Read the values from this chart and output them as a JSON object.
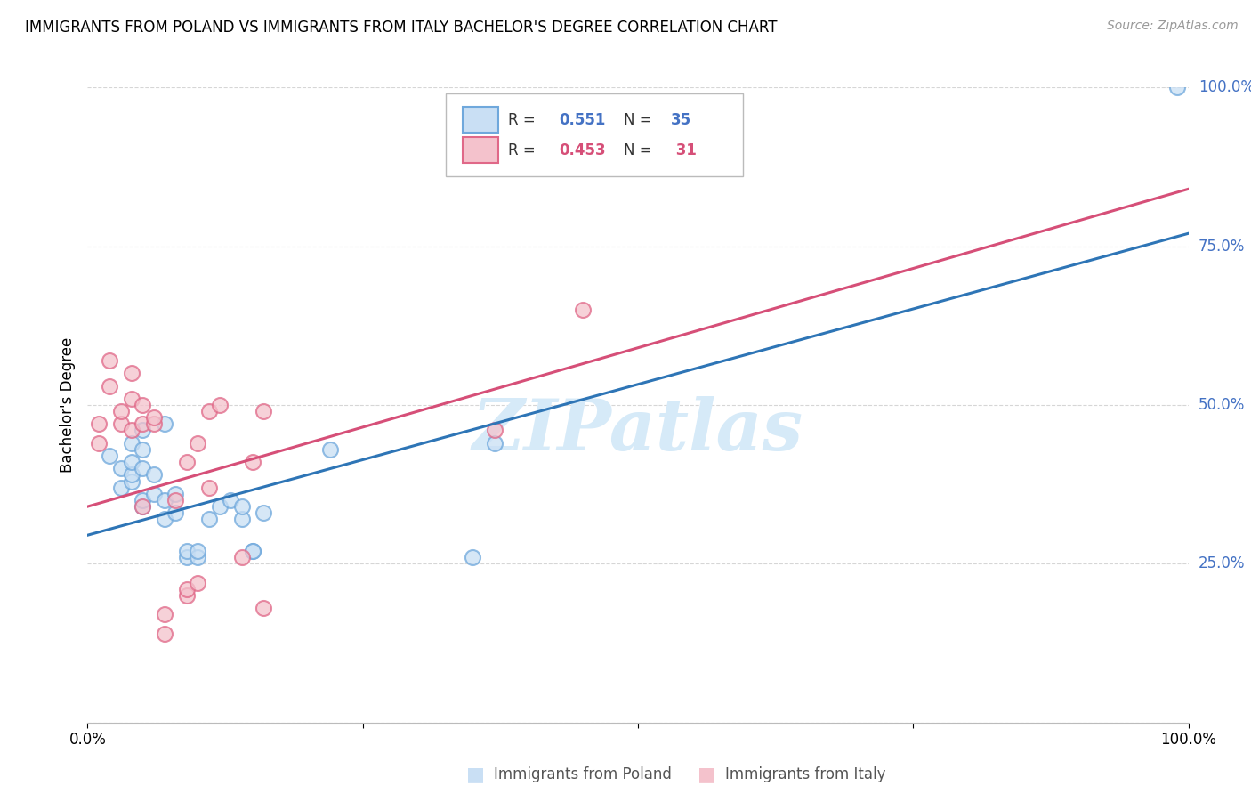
{
  "title": "IMMIGRANTS FROM POLAND VS IMMIGRANTS FROM ITALY BACHELOR'S DEGREE CORRELATION CHART",
  "source": "Source: ZipAtlas.com",
  "ylabel": "Bachelor's Degree",
  "xlim": [
    0,
    1
  ],
  "ylim": [
    0,
    1
  ],
  "yticks": [
    0.0,
    0.25,
    0.5,
    0.75,
    1.0
  ],
  "ytick_labels": [
    "",
    "25.0%",
    "50.0%",
    "75.0%",
    "100.0%"
  ],
  "poland_color": "#6fa8dc",
  "poland_fill": "#c9dff4",
  "italy_color": "#e06888",
  "italy_fill": "#f4c2cc",
  "poland_R": "0.551",
  "poland_N": "35",
  "italy_R": "0.453",
  "italy_N": "31",
  "poland_scatter_x": [
    0.02,
    0.03,
    0.03,
    0.04,
    0.04,
    0.04,
    0.04,
    0.05,
    0.05,
    0.05,
    0.05,
    0.05,
    0.06,
    0.06,
    0.07,
    0.07,
    0.07,
    0.08,
    0.08,
    0.09,
    0.09,
    0.1,
    0.1,
    0.11,
    0.12,
    0.13,
    0.14,
    0.14,
    0.15,
    0.15,
    0.16,
    0.22,
    0.35,
    0.37,
    0.99
  ],
  "poland_scatter_y": [
    0.42,
    0.37,
    0.4,
    0.38,
    0.39,
    0.41,
    0.44,
    0.34,
    0.35,
    0.4,
    0.43,
    0.46,
    0.36,
    0.39,
    0.32,
    0.35,
    0.47,
    0.33,
    0.36,
    0.26,
    0.27,
    0.26,
    0.27,
    0.32,
    0.34,
    0.35,
    0.32,
    0.34,
    0.27,
    0.27,
    0.33,
    0.43,
    0.26,
    0.44,
    1.0
  ],
  "italy_scatter_x": [
    0.01,
    0.01,
    0.02,
    0.02,
    0.03,
    0.03,
    0.04,
    0.04,
    0.04,
    0.05,
    0.05,
    0.05,
    0.06,
    0.06,
    0.07,
    0.07,
    0.08,
    0.09,
    0.09,
    0.09,
    0.1,
    0.1,
    0.11,
    0.11,
    0.12,
    0.14,
    0.15,
    0.16,
    0.16,
    0.37,
    0.45
  ],
  "italy_scatter_y": [
    0.44,
    0.47,
    0.53,
    0.57,
    0.47,
    0.49,
    0.46,
    0.51,
    0.55,
    0.34,
    0.47,
    0.5,
    0.47,
    0.48,
    0.14,
    0.17,
    0.35,
    0.2,
    0.21,
    0.41,
    0.22,
    0.44,
    0.37,
    0.49,
    0.5,
    0.26,
    0.41,
    0.18,
    0.49,
    0.46,
    0.65
  ],
  "poland_line_x": [
    0,
    1
  ],
  "poland_line_y": [
    0.295,
    0.77
  ],
  "italy_line_x": [
    0,
    1
  ],
  "italy_line_y": [
    0.34,
    0.84
  ],
  "background_color": "#ffffff",
  "grid_color": "#cccccc",
  "watermark_text": "ZIPatlas",
  "watermark_color": "#d6eaf8",
  "legend_label_poland": "Immigrants from Poland",
  "legend_label_italy": "Immigrants from Italy",
  "title_fontsize": 12,
  "source_fontsize": 10,
  "tick_fontsize": 12
}
